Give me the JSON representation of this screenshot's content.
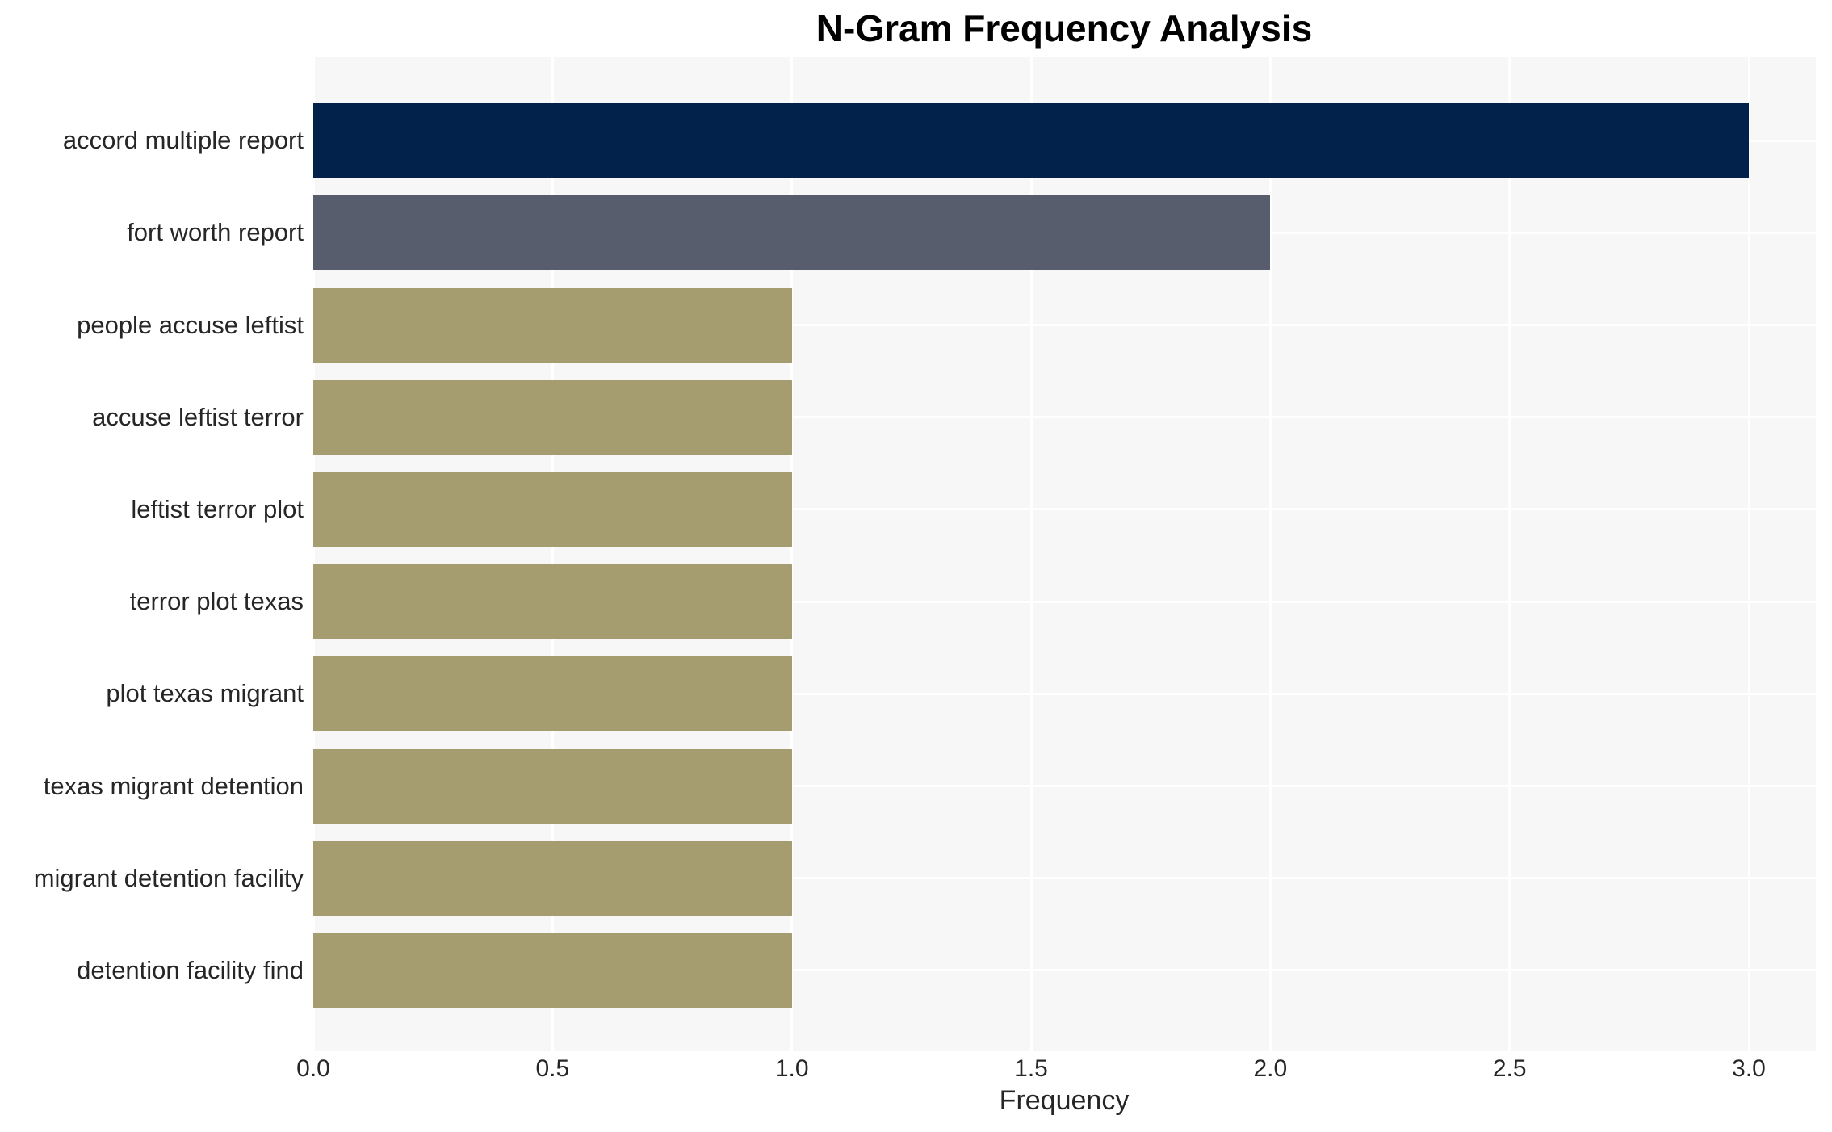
{
  "chart_data": {
    "type": "bar",
    "orientation": "horizontal",
    "title": "N-Gram Frequency Analysis",
    "xlabel": "Frequency",
    "ylabel": "",
    "categories": [
      "accord multiple report",
      "fort worth report",
      "people accuse leftist",
      "accuse leftist terror",
      "leftist terror plot",
      "terror plot texas",
      "plot texas migrant",
      "texas migrant detention",
      "migrant detention facility",
      "detention facility find"
    ],
    "values": [
      3,
      2,
      1,
      1,
      1,
      1,
      1,
      1,
      1,
      1
    ],
    "bar_colors": [
      "#03224b",
      "#575d6c",
      "#a59c70",
      "#a59c70",
      "#a59c70",
      "#a59c70",
      "#a59c70",
      "#a59c70",
      "#a59c70",
      "#a59c70"
    ],
    "xticks": [
      0.0,
      0.5,
      1.0,
      1.5,
      2.0,
      2.5,
      3.0
    ],
    "xtick_labels": [
      "0.0",
      "0.5",
      "1.0",
      "1.5",
      "2.0",
      "2.5",
      "3.0"
    ],
    "xlim": [
      0,
      3.14
    ],
    "grid": "white major gridlines on light-gray panel, vertical at ticks and horizontal at category centers",
    "legend": null,
    "colors": {
      "plot_background": "#f7f7f7",
      "gridline": "#ffffff",
      "title_text": "#000000",
      "axis_text": "#262626"
    }
  }
}
